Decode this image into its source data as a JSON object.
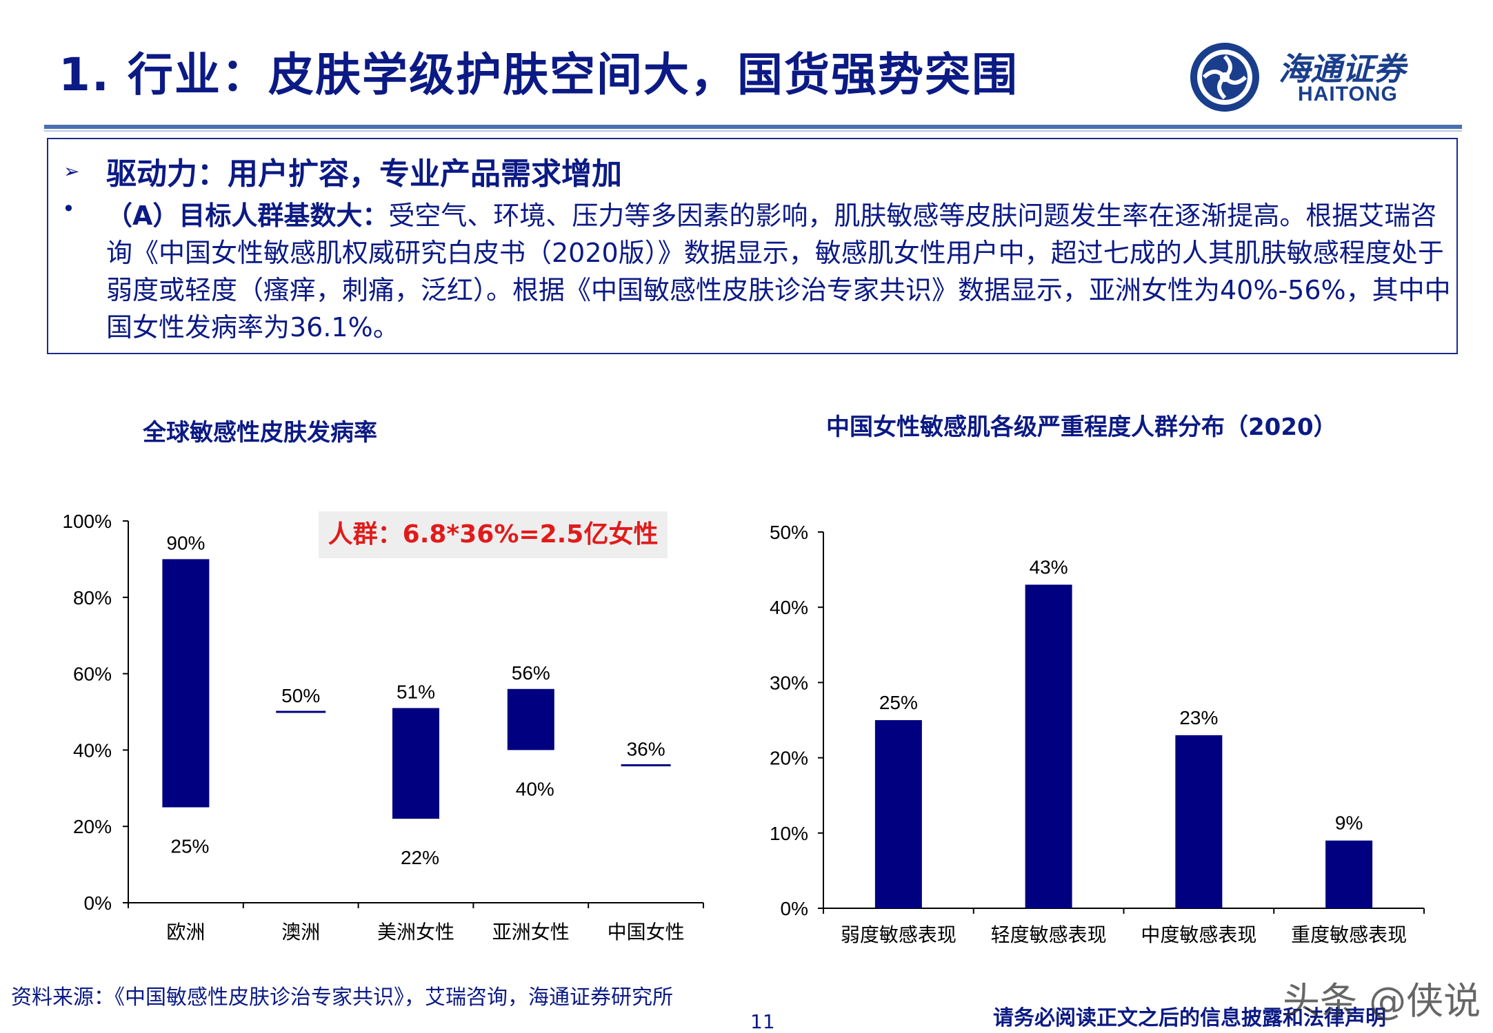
{
  "header": {
    "title": "1. 行业：皮肤学级护肤空间大，国货强势突围",
    "logo_cn": "海通证券",
    "logo_en": "HAITONG"
  },
  "summary": {
    "driver": "驱动力：用户扩容，专业产品需求增加",
    "point_label": "（A）目标人群基数大：",
    "point_text": "受空气、环境、压力等多因素的影响，肌肤敏感等皮肤问题发生率在逐渐提高。根据艾瑞咨询《中国女性敏感肌权威研究白皮书（2020版）》数据显示，敏感肌女性用户中，超过七成的人其肌肤敏感程度处于弱度或轻度（瘙痒，刺痛，泛红）。根据《中国敏感性皮肤诊治专家共识》数据显示，亚洲女性为40%-56%，其中中国女性发病率为36.1%。"
  },
  "chart_data": [
    {
      "type": "bar",
      "subtype": "floating-range",
      "title": "全球敏感性皮肤发病率",
      "categories": [
        "欧洲",
        "澳洲",
        "美洲女性",
        "亚洲女性",
        "中国女性"
      ],
      "low": [
        25,
        50,
        22,
        40,
        36
      ],
      "high": [
        90,
        50,
        51,
        56,
        36
      ],
      "low_labels": [
        "25%",
        "",
        "22%",
        "40%",
        ""
      ],
      "high_labels": [
        "90%",
        "50%",
        "51%",
        "56%",
        "36%"
      ],
      "ylim": [
        0,
        100
      ],
      "yticks": [
        "0%",
        "20%",
        "40%",
        "60%",
        "80%",
        "100%"
      ],
      "annotation": "人群：6.8*36%=2.5亿女性",
      "bar_color": "#000080",
      "grid": false
    },
    {
      "type": "bar",
      "title": "中国女性敏感肌各级严重程度人群分布（2020）",
      "categories": [
        "弱度敏感表现",
        "轻度敏感表现",
        "中度敏感表现",
        "重度敏感表现"
      ],
      "values": [
        25,
        43,
        23,
        9
      ],
      "value_labels": [
        "25%",
        "43%",
        "23%",
        "9%"
      ],
      "ylim": [
        0,
        50
      ],
      "yticks": [
        "0%",
        "10%",
        "20%",
        "30%",
        "40%",
        "50%"
      ],
      "bar_color": "#000080",
      "grid": false
    }
  ],
  "footer": {
    "source": "资料来源：《中国敏感性皮肤诊治专家共识》，艾瑞咨询，海通证券研究所",
    "page": "11",
    "disclaimer": "请务必阅读正文之后的信息披露和法律声明"
  },
  "watermark": "头条 @侠说"
}
